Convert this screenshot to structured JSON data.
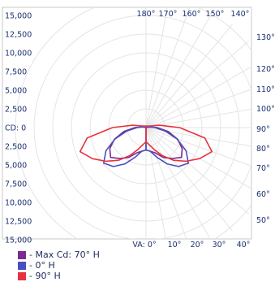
{
  "chart_data": {
    "type": "polar-photometric",
    "candela_ticks": [
      "15,000",
      "12,500",
      "10,000",
      "7,500",
      "5,000",
      "2,500",
      "CD: 0",
      "2,500",
      "5,000",
      "7,500",
      "10,000",
      "12,500",
      "15,000"
    ],
    "candela_range": [
      0,
      15000
    ],
    "vertical_angle_ticks_bottom": [
      "VA: 0°",
      "10°",
      "20°",
      "30°",
      "40°"
    ],
    "vertical_angle_ticks_right": [
      "50°",
      "60°",
      "70°",
      "80°",
      "90°",
      "100°",
      "110°",
      "120°",
      "130°"
    ],
    "vertical_angle_ticks_top": [
      "180°",
      "170°",
      "160°",
      "150°",
      "140°"
    ],
    "max_cd_angle": 70,
    "series": [
      {
        "name": "- Max Cd: 70° H",
        "color": "#7b2a8f",
        "polar_candela": [
          [
            0,
            3000
          ],
          [
            10,
            3200
          ],
          [
            20,
            3600
          ],
          [
            30,
            4600
          ],
          [
            40,
            5400
          ],
          [
            50,
            6200
          ],
          [
            60,
            5600
          ],
          [
            70,
            4500
          ],
          [
            80,
            3000
          ],
          [
            90,
            1500
          ],
          [
            100,
            500
          ],
          [
            110,
            100
          ]
        ]
      },
      {
        "name": "- 0° H",
        "color": "#4a4fbf",
        "polar_candela": [
          [
            0,
            3000
          ],
          [
            10,
            3200
          ],
          [
            20,
            4200
          ],
          [
            30,
            5600
          ],
          [
            40,
            6800
          ],
          [
            50,
            7400
          ],
          [
            60,
            6200
          ],
          [
            70,
            4400
          ],
          [
            80,
            2600
          ],
          [
            90,
            1200
          ],
          [
            100,
            500
          ],
          [
            110,
            100
          ]
        ]
      },
      {
        "name": "- 90° H",
        "color": "#e8323f",
        "polar_candela": [
          [
            0,
            1900
          ],
          [
            10,
            2300
          ],
          [
            20,
            3100
          ],
          [
            30,
            4300
          ],
          [
            40,
            5700
          ],
          [
            50,
            7000
          ],
          [
            60,
            8300
          ],
          [
            70,
            9400
          ],
          [
            80,
            8000
          ],
          [
            90,
            4500
          ],
          [
            100,
            1800
          ],
          [
            110,
            600
          ]
        ]
      }
    ]
  },
  "legend": [
    {
      "label": "- Max Cd: 70° H",
      "color": "#7b2a8f"
    },
    {
      "label": "- 0° H",
      "color": "#4a4fbf"
    },
    {
      "label": "- 90° H",
      "color": "#e8323f"
    }
  ]
}
